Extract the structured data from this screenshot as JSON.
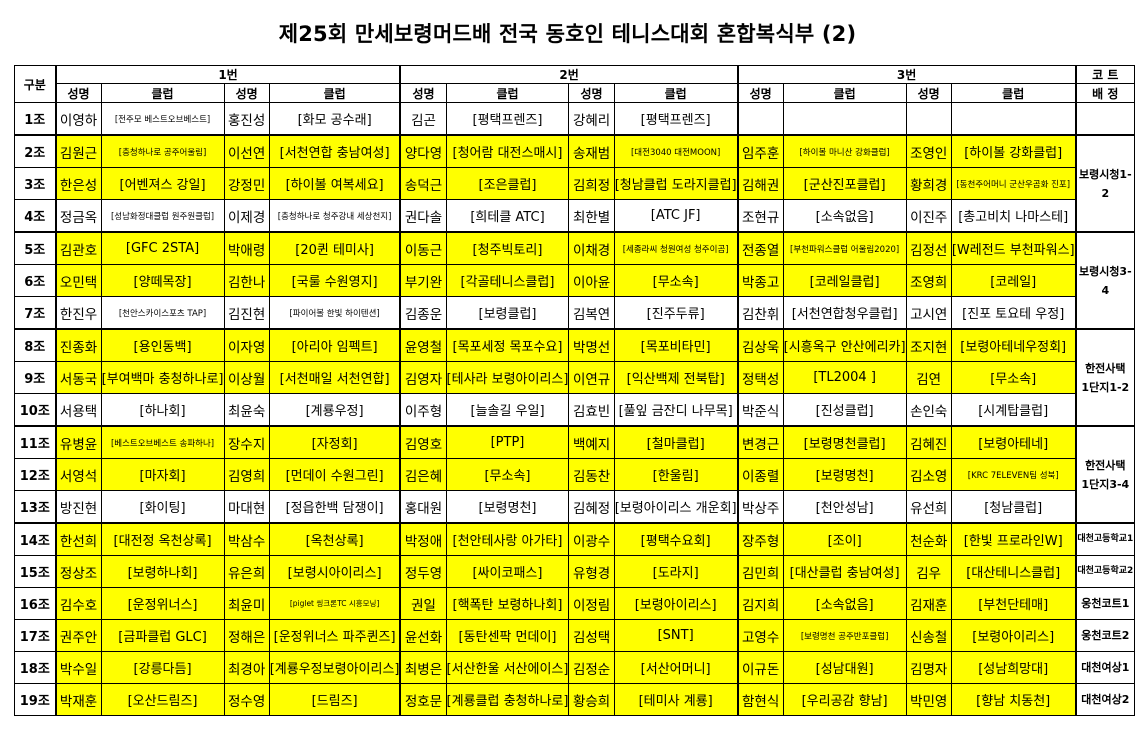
{
  "title": "제25회 만세보령머드배 전국 동호인 테니스대회 혼합복식부 (2)",
  "header": {
    "group": "구분",
    "num1": "1번",
    "num2": "2번",
    "num3": "3번",
    "court_top": "코 트",
    "court_bottom": "배 정",
    "name": "성명",
    "club": "클럽"
  },
  "colors": {
    "highlight": "#ffff00"
  },
  "rows": [
    {
      "g": "1조",
      "y": false,
      "p": [
        [
          "이영하",
          "[전주모 베스트오브베스트]"
        ],
        [
          "홍진성",
          "[화모 공수래]"
        ],
        [
          "김곤",
          "[평택프렌즈]"
        ],
        [
          "강혜리",
          "[평택프렌즈]"
        ],
        [
          "",
          ""
        ],
        [
          "",
          ""
        ]
      ]
    },
    {
      "g": "2조",
      "y": true,
      "p": [
        [
          "김원근",
          "[충청하나로 공주어울림]"
        ],
        [
          "이선연",
          "[서천연합 충남여성]"
        ],
        [
          "양다영",
          "[청어람 대전스매시]"
        ],
        [
          "송재범",
          "[대전3040 대전MOON]"
        ],
        [
          "임주훈",
          "[하이볼 마니산 강화클럽]"
        ],
        [
          "조영인",
          "[하이볼 강화클럽]"
        ]
      ]
    },
    {
      "g": "3조",
      "y": true,
      "p": [
        [
          "한은성",
          "[어벤져스 강일]"
        ],
        [
          "강정민",
          "[하이볼 여복세요]"
        ],
        [
          "송덕근",
          "[조은클럽]"
        ],
        [
          "김희정",
          "[청남클럽 도라지클럽]"
        ],
        [
          "김해권",
          "[군산진포클럽]"
        ],
        [
          "황희경",
          "[동천주어머니 군산우곰화 진포]"
        ]
      ]
    },
    {
      "g": "4조",
      "y": false,
      "p": [
        [
          "정금옥",
          "[성남화정대클럽 원주원클럽]"
        ],
        [
          "이제경",
          "[충청하나로 청주강내 세상천지]"
        ],
        [
          "권다솔",
          "[희테클 ATC]"
        ],
        [
          "최한별",
          "[ATC JF]"
        ],
        [
          "조현규",
          "[소속없음]"
        ],
        [
          "이진주",
          "[총고비치 나마스테]"
        ]
      ]
    },
    {
      "g": "5조",
      "y": true,
      "p": [
        [
          "김관호",
          "[GFC 2STA]"
        ],
        [
          "박애령",
          "[20퀸 테미사]"
        ],
        [
          "이동근",
          "[청주빅토리]"
        ],
        [
          "이채경",
          "[세종라씨 청원여성 청주이곰]"
        ],
        [
          "전종열",
          "[부천파워스클럽 어울림2020]"
        ],
        [
          "김정선",
          "[W레전드 부천파워스]"
        ]
      ]
    },
    {
      "g": "6조",
      "y": true,
      "p": [
        [
          "오민택",
          "[양떼목장]"
        ],
        [
          "김한나",
          "[국룰 수원영지]"
        ],
        [
          "부기완",
          "[각골테니스클럽]"
        ],
        [
          "이아윤",
          "[무소속]"
        ],
        [
          "박종고",
          "[코레일클럽]"
        ],
        [
          "조영희",
          "[코레일]"
        ]
      ]
    },
    {
      "g": "7조",
      "y": false,
      "p": [
        [
          "한진우",
          "[천안스카이스포츠 TAP]"
        ],
        [
          "김진현",
          "[파이어볼 한빛 하이텐션]"
        ],
        [
          "김종운",
          "[보령클럽]"
        ],
        [
          "김복연",
          "[진주두류]"
        ],
        [
          "김찬휘",
          "[서천연합청우클럽]"
        ],
        [
          "고시연",
          "[진포 토요테 우정]"
        ]
      ]
    },
    {
      "g": "8조",
      "y": true,
      "p": [
        [
          "진종화",
          "[용인동백]"
        ],
        [
          "이자영",
          "[아리아 임펙트]"
        ],
        [
          "윤영철",
          "[목포세정 목포수요]"
        ],
        [
          "박명선",
          "[목포비타민]"
        ],
        [
          "김상욱",
          "[시흥옥구 안산에리카]"
        ],
        [
          "조지현",
          "[보령아테네우정회]"
        ]
      ]
    },
    {
      "g": "9조",
      "y": true,
      "p": [
        [
          "서동국",
          "[부여백마 충청하나로]"
        ],
        [
          "이상월",
          "[서천매일 서천연합]"
        ],
        [
          "김영자",
          "[테사라 보령아이리스]"
        ],
        [
          "이연규",
          "[익산백제 전북탑]"
        ],
        [
          "정택성",
          "[TL2004 ]"
        ],
        [
          "김연",
          "[무소속]"
        ]
      ]
    },
    {
      "g": "10조",
      "y": false,
      "p": [
        [
          "서용택",
          "[하나회]"
        ],
        [
          "최윤숙",
          "[계룡우정]"
        ],
        [
          "이주형",
          "[늘솔길 우일]"
        ],
        [
          "김효빈",
          "[풀잎 금잔디 나무목]"
        ],
        [
          "박준식",
          "[진성클럽]"
        ],
        [
          "손인숙",
          "[시계탑클럽]"
        ]
      ]
    },
    {
      "g": "11조",
      "y": true,
      "p": [
        [
          "유병윤",
          "[베스트오브베스트 송파하나]"
        ],
        [
          "장수지",
          "[자정회]"
        ],
        [
          "김영호",
          "[PTP]"
        ],
        [
          "백예지",
          "[철마클럽]"
        ],
        [
          "변경근",
          "[보령명천클럽]"
        ],
        [
          "김혜진",
          "[보령아테네]"
        ]
      ]
    },
    {
      "g": "12조",
      "y": true,
      "p": [
        [
          "서영석",
          "[마자회]"
        ],
        [
          "김영희",
          "[먼데이 수원그린]"
        ],
        [
          "김은혜",
          "[무소속]"
        ],
        [
          "김동찬",
          "[한울림]"
        ],
        [
          "이종렬",
          "[보령명천]"
        ],
        [
          "김소영",
          "[KRC 7ELEVEN팀 성북]"
        ]
      ]
    },
    {
      "g": "13조",
      "y": false,
      "p": [
        [
          "방진현",
          "[화이팅]"
        ],
        [
          "마대현",
          "[정읍한백 담쟁이]"
        ],
        [
          "홍대원",
          "[보령명천]"
        ],
        [
          "김혜정",
          "[보령아이리스 개운회]"
        ],
        [
          "박상주",
          "[천안성남]"
        ],
        [
          "유선희",
          "[청남클럽]"
        ]
      ]
    },
    {
      "g": "14조",
      "y": true,
      "p": [
        [
          "한선희",
          "[대전정 옥천상록]"
        ],
        [
          "박삼수",
          "[옥천상록]"
        ],
        [
          "박정애",
          "[천안테사랑 아가타]"
        ],
        [
          "이광수",
          "[평택수요회]"
        ],
        [
          "장주형",
          "[조이]"
        ],
        [
          "천순화",
          "[한빛 프로라인W]"
        ]
      ]
    },
    {
      "g": "15조",
      "y": true,
      "p": [
        [
          "정상조",
          "[보령하나회]"
        ],
        [
          "유은희",
          "[보령시아이리스]"
        ],
        [
          "정두영",
          "[싸이코패스]"
        ],
        [
          "유형경",
          "[도라지]"
        ],
        [
          "김민희",
          "[대산클럽 충남여성]"
        ],
        [
          "김우",
          "[대산테니스클럽]"
        ]
      ]
    },
    {
      "g": "16조",
      "y": true,
      "p": [
        [
          "김수호",
          "[운정위너스]"
        ],
        [
          "최윤미",
          "[piglet 씽크론TC 시흥모닝]"
        ],
        [
          "권일",
          "[핵폭탄 보령하나회]"
        ],
        [
          "이정림",
          "[보령아이리스]"
        ],
        [
          "김지희",
          "[소속없음]"
        ],
        [
          "김재훈",
          "[부천단테매]"
        ]
      ]
    },
    {
      "g": "17조",
      "y": true,
      "p": [
        [
          "권주안",
          "[금파클럽 GLC]"
        ],
        [
          "정해은",
          "[운정위너스 파주퀸즈]"
        ],
        [
          "윤선화",
          "[동탄센팍 먼데이]"
        ],
        [
          "김성택",
          "[SNT]"
        ],
        [
          "고영수",
          "[보령명천 공주반포클럽]"
        ],
        [
          "신송철",
          "[보령아이리스]"
        ]
      ]
    },
    {
      "g": "18조",
      "y": true,
      "p": [
        [
          "박수일",
          "[강릉다듬]"
        ],
        [
          "최경아",
          "[계룡우정보령아이리스]"
        ],
        [
          "최병은",
          "[서산한울 서산에이스]"
        ],
        [
          "김정순",
          "[서산어머니]"
        ],
        [
          "이규돈",
          "[성남대원]"
        ],
        [
          "김명자",
          "[성남희망대]"
        ]
      ]
    },
    {
      "g": "19조",
      "y": true,
      "p": [
        [
          "박재훈",
          "[오산드림즈]"
        ],
        [
          "정수영",
          "[드림즈]"
        ],
        [
          "정호문",
          "[계룡클럽 충청하나로]"
        ],
        [
          "황승희",
          "[테미사 계룡]"
        ],
        [
          "함현식",
          "[우리공감 향남]"
        ],
        [
          "박민영",
          "[향남 치동천]"
        ]
      ]
    }
  ],
  "courts": {
    "bor12": "보령시청1-2",
    "bor34": "보령시청3-4",
    "hj12_a": "한전사택",
    "hj12_b": "1단지1-2",
    "hj34_a": "한전사택",
    "hj34_b": "1단지3-4",
    "dc1": "대천고등학교1",
    "dc2": "대천고등학교2",
    "uc1": "웅천코트1",
    "uc2": "웅천코트2",
    "dy1": "대천여상1",
    "dy2": "대천여상2"
  }
}
